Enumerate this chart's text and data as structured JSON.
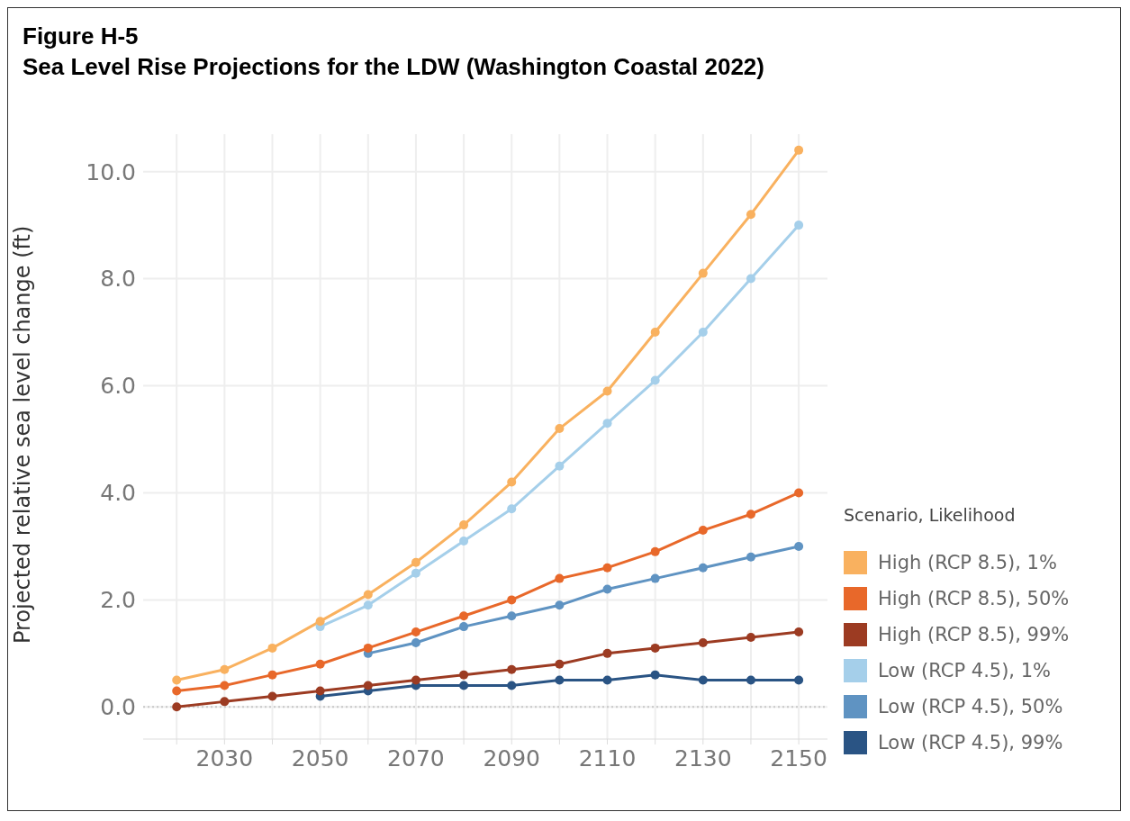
{
  "chart_data": {
    "type": "line",
    "title": "Figure H-5",
    "subtitle": "Sea Level Rise Projections for the LDW (Washington Coastal 2022)",
    "ylabel": "Projected relative sea level change (ft)",
    "legend_title": "Scenario, Likelihood",
    "legend": "right",
    "grid": true,
    "marker": "circle",
    "line_style": "solid",
    "x": [
      2020,
      2030,
      2040,
      2050,
      2060,
      2070,
      2080,
      2090,
      2100,
      2110,
      2120,
      2130,
      2140,
      2150
    ],
    "xlim": [
      2013,
      2156
    ],
    "xticks": [
      {
        "value": 2020,
        "label": null
      },
      2030,
      {
        "value": 2040,
        "label": null
      },
      2050,
      {
        "value": 2060,
        "label": null
      },
      2070,
      {
        "value": 2080,
        "label": null
      },
      2090,
      {
        "value": 2100,
        "label": null
      },
      2110,
      {
        "value": 2120,
        "label": null
      },
      2130,
      {
        "value": 2140,
        "label": null
      },
      2150
    ],
    "ylim": [
      -0.6,
      10.7
    ],
    "yticks": [
      {
        "value": 0,
        "label": "0.0"
      },
      {
        "value": 2,
        "label": "2.0"
      },
      {
        "value": 4,
        "label": "4.0"
      },
      {
        "value": 6,
        "label": "6.0"
      },
      {
        "value": 8,
        "label": "8.0"
      },
      {
        "value": 10,
        "label": "10.0"
      }
    ],
    "ref_lines": [
      {
        "axis": "y",
        "value": 0,
        "label": null,
        "color": "#c8c8c8",
        "line_style": "dotted"
      }
    ],
    "series": [
      {
        "name": "High (RCP 8.5), 1%",
        "color": "#f9b15f",
        "values": [
          0.5,
          0.7,
          1.1,
          1.6,
          2.1,
          2.7,
          3.4,
          4.2,
          5.2,
          5.9,
          7.0,
          8.1,
          9.2,
          10.4
        ]
      },
      {
        "name": "High (RCP 8.5), 50%",
        "color": "#e8682a",
        "values": [
          0.3,
          0.4,
          0.6,
          0.8,
          1.1,
          1.4,
          1.7,
          2.0,
          2.4,
          2.6,
          2.9,
          3.3,
          3.6,
          4.0
        ]
      },
      {
        "name": "High (RCP 8.5), 99%",
        "color": "#9c3b22",
        "values": [
          0.0,
          0.1,
          0.2,
          0.3,
          0.4,
          0.5,
          0.6,
          0.7,
          0.8,
          1.0,
          1.1,
          1.2,
          1.3,
          1.4
        ]
      },
      {
        "name": "Low (RCP 4.5), 1%",
        "color": "#a5cfea",
        "values": [
          null,
          null,
          null,
          1.5,
          1.9,
          2.5,
          3.1,
          3.7,
          4.5,
          5.3,
          6.1,
          7.0,
          8.0,
          9.0
        ]
      },
      {
        "name": "Low (RCP 4.5), 50%",
        "color": "#5f93c2",
        "values": [
          null,
          null,
          null,
          null,
          1.0,
          1.2,
          1.5,
          1.7,
          1.9,
          2.2,
          2.4,
          2.6,
          2.8,
          3.0
        ]
      },
      {
        "name": "Low (RCP 4.5), 99%",
        "color": "#2a5484",
        "values": [
          null,
          null,
          null,
          0.2,
          0.3,
          0.4,
          0.4,
          0.4,
          0.5,
          0.5,
          0.6,
          0.5,
          0.5,
          0.5
        ]
      }
    ]
  }
}
